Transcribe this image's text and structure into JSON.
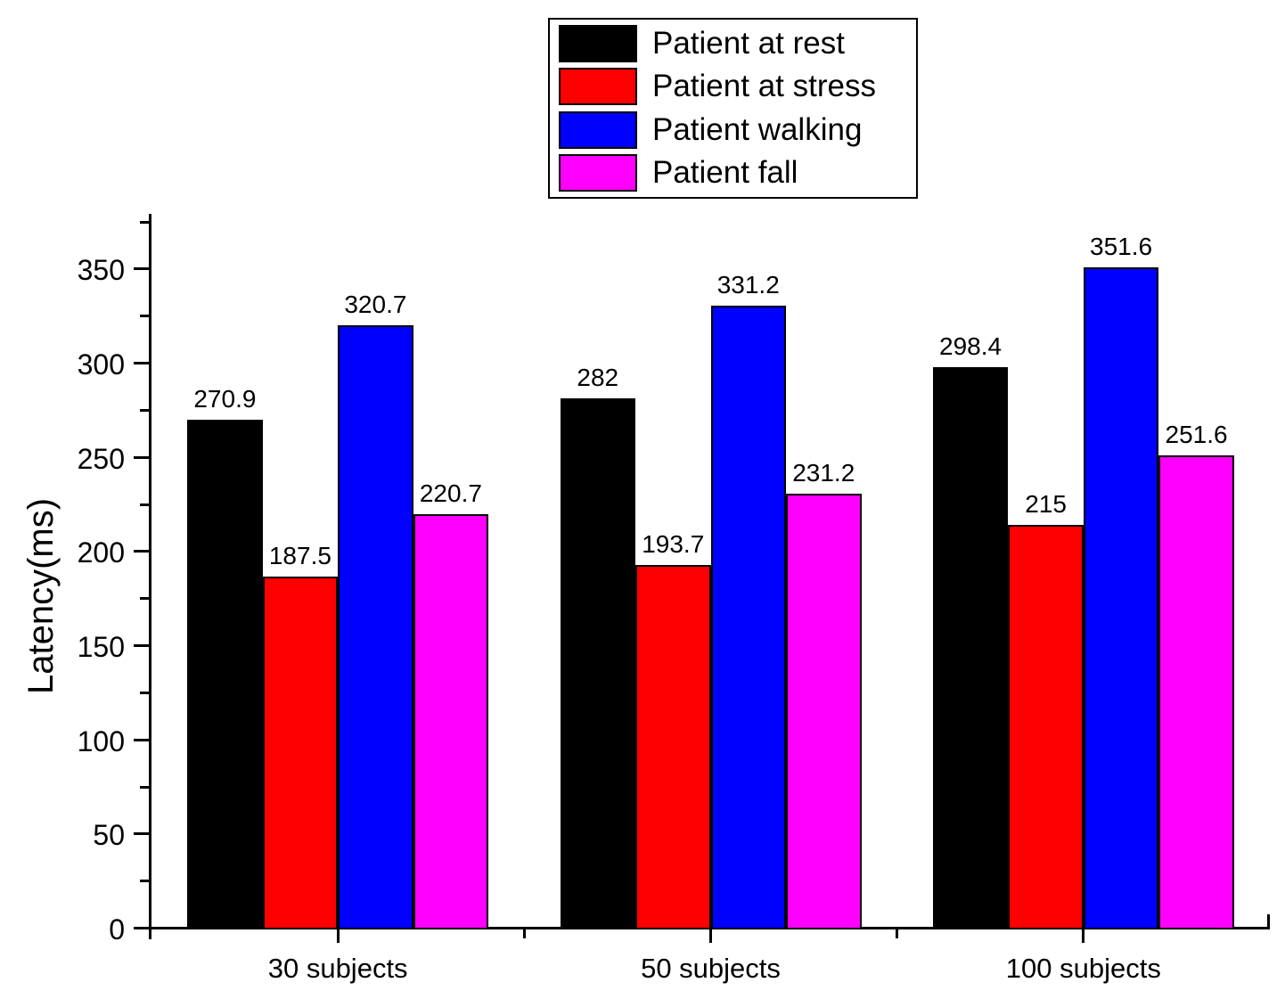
{
  "chart_data": {
    "type": "bar",
    "title": "",
    "xlabel": "",
    "ylabel": "Latency(ms)",
    "categories": [
      "30 subjects",
      "50 subjects",
      "100 subjects"
    ],
    "series": [
      {
        "name": "Patient at rest",
        "color": "#000000",
        "values": [
          270.9,
          282.0,
          298.4
        ],
        "value_labels": [
          "270.9",
          "282",
          "298.4"
        ]
      },
      {
        "name": "Patient at stress",
        "color": "#ff0000",
        "values": [
          187.5,
          193.7,
          215.0
        ],
        "value_labels": [
          "187.5",
          "193.7",
          "215"
        ]
      },
      {
        "name": "Patient walking",
        "color": "#0000ff",
        "values": [
          320.7,
          331.2,
          351.6
        ],
        "value_labels": [
          "320.7",
          "331.2",
          "351.6"
        ]
      },
      {
        "name": "Patient fall",
        "color": "#ff00ff",
        "values": [
          220.7,
          231.2,
          251.6
        ],
        "value_labels": [
          "220.7",
          "231.2",
          "251.6"
        ]
      }
    ],
    "ylim": [
      0,
      380
    ],
    "y_major_ticks": [
      0,
      50,
      100,
      150,
      200,
      250,
      300,
      350
    ],
    "y_minor_tick_step": 25,
    "grid": false,
    "legend_position": "top-center",
    "bar_border_color": "#000000",
    "axis_color": "#000000",
    "background_color": "#ffffff"
  }
}
